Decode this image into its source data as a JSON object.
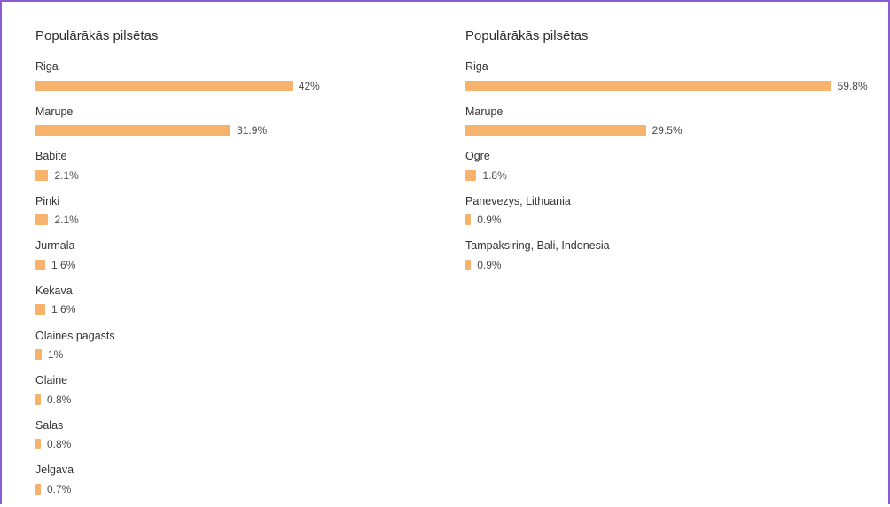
{
  "chart_data": [
    {
      "type": "bar",
      "orientation": "horizontal",
      "title": "Populārākās pilsētas",
      "categories": [
        "Riga",
        "Marupe",
        "Babite",
        "Pinki",
        "Jurmala",
        "Kekava",
        "Olaines pagasts",
        "Olaine",
        "Salas",
        "Jelgava"
      ],
      "values": [
        42,
        31.9,
        2.1,
        2.1,
        1.6,
        1.6,
        1,
        0.8,
        0.8,
        0.7
      ],
      "value_labels": [
        "42%",
        "31.9%",
        "2.1%",
        "2.1%",
        "1.6%",
        "1.6%",
        "1%",
        "0.8%",
        "0.8%",
        "0.7%"
      ],
      "unit": "%",
      "bar_color": "#f7b26b"
    },
    {
      "type": "bar",
      "orientation": "horizontal",
      "title": "Populārākās pilsētas",
      "categories": [
        "Riga",
        "Marupe",
        "Ogre",
        "Panevezys, Lithuania",
        "Tampaksiring, Bali, Indonesia"
      ],
      "values": [
        59.8,
        29.5,
        1.8,
        0.9,
        0.9
      ],
      "value_labels": [
        "59.8%",
        "29.5%",
        "1.8%",
        "0.9%",
        "0.9%"
      ],
      "unit": "%",
      "bar_color": "#f7b26b"
    }
  ]
}
